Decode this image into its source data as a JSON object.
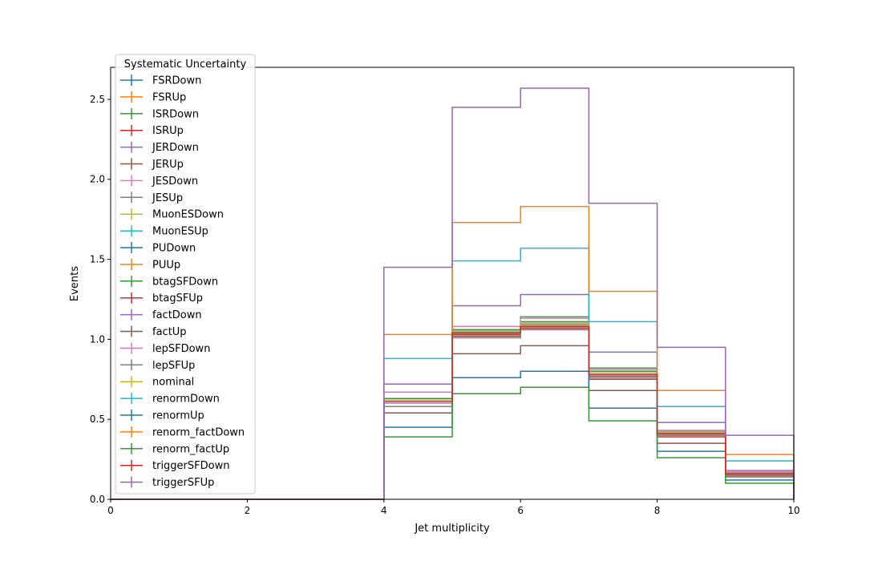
{
  "chart_data": {
    "type": "step",
    "xlabel": "Jet multiplicity",
    "ylabel": "Events",
    "xlim": [
      0,
      10
    ],
    "ylim": [
      0,
      2.7
    ],
    "x_ticks": [
      "0",
      "2",
      "4",
      "6",
      "8",
      "10"
    ],
    "y_ticks": [
      "0.0",
      "0.5",
      "1.0",
      "1.5",
      "2.0",
      "2.5"
    ],
    "bin_edges": [
      0,
      1,
      2,
      3,
      4,
      5,
      6,
      7,
      8,
      9,
      10
    ],
    "legend": {
      "title": "Systematic Uncertainty",
      "placement": "upper-left"
    },
    "series": [
      {
        "name": "FSRDown",
        "color": "#1f77b4",
        "values": [
          0,
          0,
          0,
          0,
          0.63,
          1.05,
          1.1,
          0.79,
          0.42,
          0.16
        ]
      },
      {
        "name": "FSRUp",
        "color": "#ff7f0e",
        "values": [
          0,
          0,
          0,
          0,
          0.62,
          1.04,
          1.09,
          0.78,
          0.41,
          0.15
        ]
      },
      {
        "name": "ISRDown",
        "color": "#2ca02c",
        "values": [
          0,
          0,
          0,
          0,
          0.63,
          1.06,
          1.11,
          0.8,
          0.43,
          0.17
        ]
      },
      {
        "name": "ISRUp",
        "color": "#d62728",
        "values": [
          0,
          0,
          0,
          0,
          0.61,
          1.03,
          1.07,
          0.77,
          0.4,
          0.15
        ]
      },
      {
        "name": "JERDown",
        "color": "#9467bd",
        "values": [
          0,
          0,
          0,
          0,
          0.62,
          1.05,
          1.1,
          0.79,
          0.42,
          0.16
        ]
      },
      {
        "name": "JERUp",
        "color": "#8c564b",
        "values": [
          0,
          0,
          0,
          0,
          0.62,
          1.04,
          1.09,
          0.78,
          0.41,
          0.16
        ]
      },
      {
        "name": "JESDown",
        "color": "#e377c2",
        "values": [
          0,
          0,
          0,
          0,
          0.6,
          1.08,
          1.1,
          0.79,
          0.42,
          0.16
        ]
      },
      {
        "name": "JESUp",
        "color": "#7f7f7f",
        "values": [
          0,
          0,
          0,
          0,
          0.63,
          1.01,
          1.06,
          0.76,
          0.4,
          0.15
        ]
      },
      {
        "name": "MuonESDown",
        "color": "#bcbd22",
        "values": [
          0,
          0,
          0,
          0,
          0.62,
          1.04,
          1.09,
          0.78,
          0.41,
          0.16
        ]
      },
      {
        "name": "MuonESUp",
        "color": "#17becf",
        "values": [
          0,
          0,
          0,
          0,
          0.62,
          1.04,
          1.09,
          0.78,
          0.41,
          0.16
        ]
      },
      {
        "name": "PUDown",
        "color": "#1f77b4",
        "values": [
          0,
          0,
          0,
          0,
          0.62,
          1.05,
          1.1,
          0.79,
          0.42,
          0.16
        ]
      },
      {
        "name": "PUUp",
        "color": "#ff7f0e",
        "values": [
          0,
          0,
          0,
          0,
          0.62,
          1.04,
          1.09,
          0.78,
          0.41,
          0.16
        ]
      },
      {
        "name": "btagSFDown",
        "color": "#2ca02c",
        "values": [
          0,
          0,
          0,
          0,
          0.63,
          1.06,
          1.14,
          0.82,
          0.43,
          0.17
        ]
      },
      {
        "name": "btagSFUp",
        "color": "#d62728",
        "values": [
          0,
          0,
          0,
          0,
          0.61,
          1.02,
          1.07,
          0.75,
          0.39,
          0.15
        ]
      },
      {
        "name": "factDown",
        "color": "#9467bd",
        "values": [
          0,
          0,
          0,
          0,
          0.72,
          1.21,
          1.28,
          0.92,
          0.48,
          0.18
        ]
      },
      {
        "name": "factUp",
        "color": "#8c564b",
        "values": [
          0,
          0,
          0,
          0,
          0.54,
          0.91,
          0.96,
          0.68,
          0.35,
          0.14
        ]
      },
      {
        "name": "lepSFDown",
        "color": "#e377c2",
        "values": [
          0,
          0,
          0,
          0,
          0.67,
          1.08,
          1.13,
          0.81,
          0.43,
          0.17
        ]
      },
      {
        "name": "lepSFUp",
        "color": "#7f7f7f",
        "values": [
          0,
          0,
          0,
          0,
          0.58,
          1.01,
          1.06,
          0.76,
          0.4,
          0.15
        ]
      },
      {
        "name": "nominal",
        "color": "#bcbd22",
        "values": [
          0,
          0,
          0,
          0,
          0.62,
          1.05,
          1.1,
          0.79,
          0.42,
          0.16
        ]
      },
      {
        "name": "renormDown",
        "color": "#17becf",
        "values": [
          0,
          0,
          0,
          0,
          0.88,
          1.49,
          1.57,
          1.11,
          0.58,
          0.24
        ]
      },
      {
        "name": "renormUp",
        "color": "#1f77b4",
        "values": [
          0,
          0,
          0,
          0,
          0.45,
          0.76,
          0.8,
          0.57,
          0.3,
          0.12
        ]
      },
      {
        "name": "renorm_factDown",
        "color": "#ff7f0e",
        "values": [
          0,
          0,
          0,
          0,
          1.03,
          1.73,
          1.83,
          1.3,
          0.68,
          0.28
        ]
      },
      {
        "name": "renorm_factUp",
        "color": "#2ca02c",
        "values": [
          0,
          0,
          0,
          0,
          0.39,
          0.66,
          0.7,
          0.49,
          0.26,
          0.1
        ]
      },
      {
        "name": "triggerSFDown",
        "color": "#d62728",
        "values": [
          0,
          0,
          0,
          0,
          0.61,
          1.04,
          1.08,
          0.78,
          0.41,
          0.16
        ]
      },
      {
        "name": "triggerSFUp",
        "color": "#9467bd",
        "values": [
          0,
          0,
          0,
          0,
          1.45,
          2.45,
          2.57,
          1.85,
          0.95,
          0.4
        ]
      }
    ]
  }
}
